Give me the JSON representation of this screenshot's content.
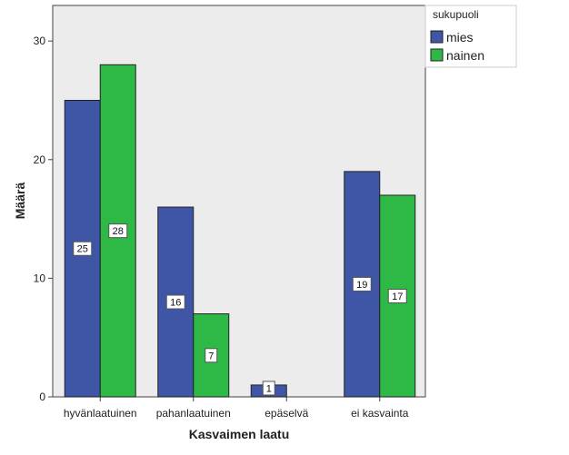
{
  "chart_data": {
    "type": "bar",
    "xlabel": "Kasvaimen laatu",
    "ylabel": "Määrä",
    "categories": [
      "hyvänlaatuinen",
      "pahanlaatuinen",
      "epäselvä",
      "ei kasvainta"
    ],
    "series": [
      {
        "name": "mies",
        "values": [
          25,
          16,
          1,
          19
        ],
        "color": "#3f56a7"
      },
      {
        "name": "nainen",
        "values": [
          28,
          7,
          0,
          17
        ],
        "color": "#2eb845"
      }
    ],
    "ylim": [
      0,
      33
    ],
    "yticks": [
      0,
      10,
      20,
      30
    ],
    "legend": {
      "title": "sukupuoli",
      "placement": "right"
    },
    "plot_background": "#ececec",
    "grid": false
  }
}
